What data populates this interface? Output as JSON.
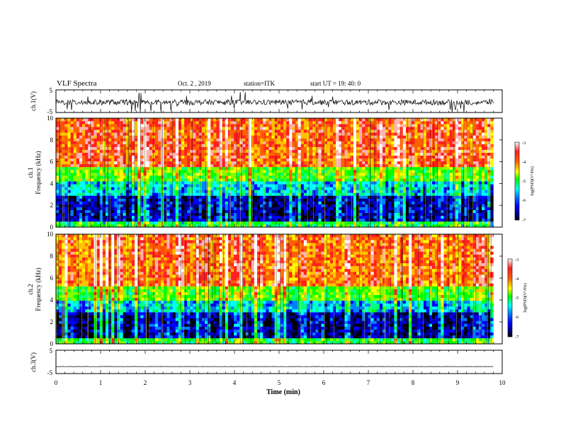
{
  "header": {
    "title": "VLF Spectra",
    "date": "Oct. 2 , 2019",
    "station": "station=ITK",
    "start_ut": "start UT = 19: 40: 0"
  },
  "chart_data": [
    {
      "type": "line",
      "panel": "ch1-waveform",
      "ylabel": "ch.1(V)",
      "y_ticks": [
        "5",
        "-5"
      ],
      "ylim": [
        -5,
        5
      ],
      "xlim": [
        0,
        10
      ],
      "baseline": -0.5,
      "noise_amplitude": 1.2,
      "spike_amplitude": 4.8,
      "color": "#000000"
    },
    {
      "type": "heatmap",
      "panel": "ch1-spectrogram",
      "ylabel": "ch.1 Frequency (kHz)",
      "xlabel": "",
      "x_range": [
        0,
        9.8
      ],
      "ylim": [
        0,
        10
      ],
      "y_ticks": [
        "0",
        "2",
        "4",
        "6",
        "8",
        "10"
      ],
      "bands_khz": [
        {
          "from": 0,
          "to": 0.5,
          "level": -5.2
        },
        {
          "from": 0.5,
          "to": 3.0,
          "level": -6.6
        },
        {
          "from": 3.0,
          "to": 4.2,
          "level": -5.8
        },
        {
          "from": 4.2,
          "to": 5.5,
          "level": -4.9
        },
        {
          "from": 5.5,
          "to": 10,
          "level": -3.6
        }
      ],
      "colorbar": {
        "label": "log(PSD)(V²/Hz)",
        "min": -7,
        "max": -3,
        "ticks": [
          "-3",
          "-4",
          "-5",
          "-6",
          "-7"
        ]
      }
    },
    {
      "type": "heatmap",
      "panel": "ch2-spectrogram",
      "ylabel": "ch.2 Frequency (kHz)",
      "xlabel": "",
      "x_range": [
        0,
        9.8
      ],
      "ylim": [
        0,
        10
      ],
      "y_ticks": [
        "0",
        "2",
        "4",
        "6",
        "8",
        "10"
      ],
      "bands_khz": [
        {
          "from": 0,
          "to": 0.6,
          "level": -5.0
        },
        {
          "from": 0.6,
          "to": 2.8,
          "level": -6.5
        },
        {
          "from": 2.8,
          "to": 4.0,
          "level": -5.7
        },
        {
          "from": 4.0,
          "to": 5.2,
          "level": -4.8
        },
        {
          "from": 5.2,
          "to": 10,
          "level": -3.6
        }
      ],
      "colorbar": {
        "label": "log(PSD)(V²/Hz)",
        "min": -7,
        "max": -3,
        "ticks": [
          "-3",
          "-4",
          "-5",
          "-6",
          "-7"
        ]
      }
    },
    {
      "type": "line",
      "panel": "ch3-waveform",
      "ylabel": "ch.3(V)",
      "y_ticks": [
        "5",
        "-5"
      ],
      "ylim": [
        -5,
        5
      ],
      "xlim": [
        0,
        10
      ],
      "baseline": -2.0,
      "noise_amplitude": 0.05,
      "spike_amplitude": 0.0,
      "color": "#000000"
    }
  ],
  "x_axis": {
    "label": "Time (min)",
    "ticks": [
      "0",
      "1",
      "2",
      "3",
      "4",
      "5",
      "6",
      "7",
      "8",
      "9",
      "10"
    ],
    "range": [
      0,
      10
    ]
  },
  "colormap": [
    "#000000",
    "#000080",
    "#0000ff",
    "#0080ff",
    "#00ffff",
    "#00ff80",
    "#00ff00",
    "#80ff00",
    "#ffff00",
    "#ffc000",
    "#ff6000",
    "#ff2020",
    "#ffb0b0",
    "#ffffff"
  ]
}
